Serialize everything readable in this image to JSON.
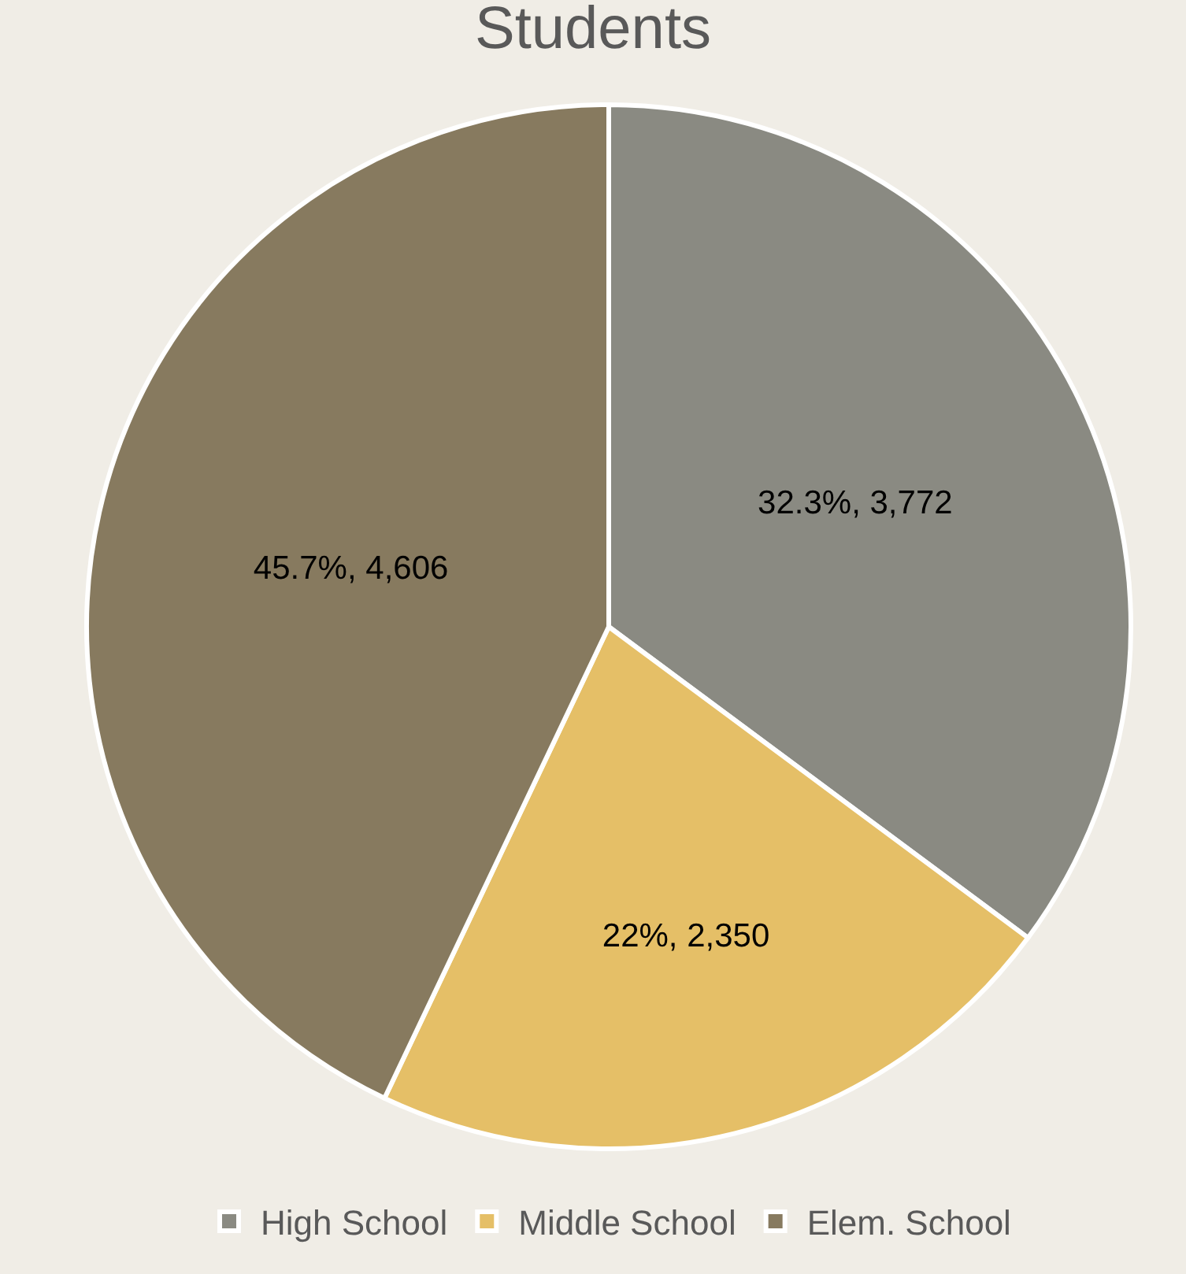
{
  "chart_data": {
    "type": "pie",
    "title": "Students",
    "categories": [
      "High School",
      "Middle School",
      "Elem. School"
    ],
    "values": [
      3772,
      2350,
      4606
    ],
    "colors": [
      "#8a8a82",
      "#e5bf67",
      "#877a5f"
    ],
    "value_labels": [
      "32.3%, 3,772",
      "22%, 2,350",
      "45.7%, 4,606"
    ],
    "legend": "bottom"
  }
}
